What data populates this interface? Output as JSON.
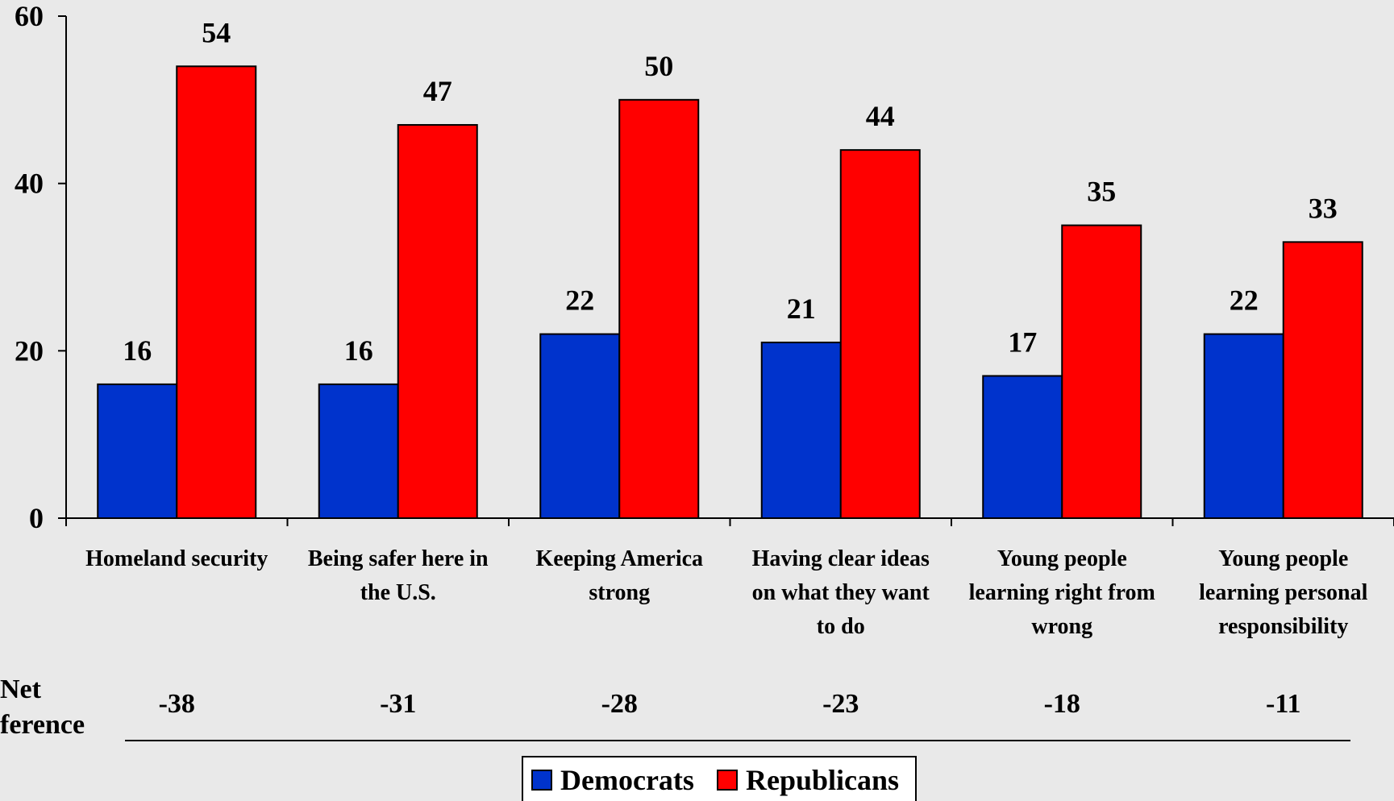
{
  "chart_data": {
    "type": "bar",
    "categories": [
      [
        "Homeland security"
      ],
      [
        "Being safer here in",
        "the U.S."
      ],
      [
        "Keeping America",
        "strong"
      ],
      [
        "Having clear ideas",
        "on what they want",
        "to do"
      ],
      [
        "Young people",
        "learning right from",
        "wrong"
      ],
      [
        "Young people",
        "learning personal",
        "responsibility"
      ]
    ],
    "series": [
      {
        "name": "Democrats",
        "values": [
          16,
          16,
          22,
          21,
          17,
          22
        ],
        "color": "#0033cc"
      },
      {
        "name": "Republicans",
        "values": [
          54,
          47,
          50,
          44,
          35,
          33
        ],
        "color": "#ff0000"
      }
    ],
    "ylim": [
      0,
      60
    ],
    "yticks": [
      0,
      20,
      40,
      60
    ],
    "net_difference": {
      "label": [
        "Net",
        "ference"
      ],
      "values": [
        "-38",
        "-31",
        "-28",
        "-23",
        "-18",
        "-11"
      ]
    },
    "legend_position": "bottom-center",
    "grid": false
  }
}
